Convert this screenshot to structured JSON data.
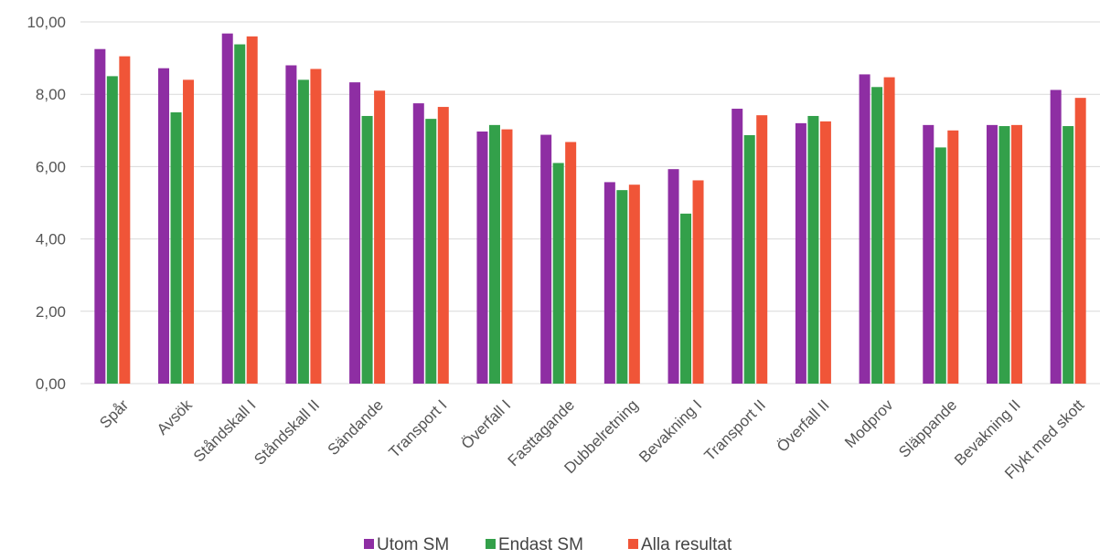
{
  "chart_data": {
    "type": "bar",
    "title": "",
    "xlabel": "",
    "ylabel": "",
    "ylim": [
      0,
      10
    ],
    "yticks": [
      "0,00",
      "2,00",
      "4,00",
      "6,00",
      "8,00",
      "10,00"
    ],
    "grid": true,
    "legend_position": "bottom",
    "categories": [
      "Spår",
      "Avsök",
      "Ståndskall I",
      "Ståndskall II",
      "Sändande",
      "Transport I",
      "Överfall I",
      "Fasttagande",
      "Dubbelretning",
      "Bevakning I",
      "Transport II",
      "Överfall II",
      "Modprov",
      "Släppande",
      "Bevakning II",
      "Flykt med skott"
    ],
    "series": [
      {
        "name": "Utom SM",
        "color": "#8e2ea3",
        "values": [
          9.25,
          8.72,
          9.68,
          8.8,
          8.33,
          7.75,
          6.97,
          6.88,
          5.57,
          5.93,
          7.6,
          7.2,
          8.55,
          7.15,
          7.15,
          8.12
        ]
      },
      {
        "name": "Endast SM",
        "color": "#33a04a",
        "values": [
          8.5,
          7.5,
          9.38,
          8.4,
          7.4,
          7.32,
          7.15,
          6.1,
          5.35,
          4.7,
          6.87,
          7.4,
          8.2,
          6.53,
          7.12,
          7.12
        ]
      },
      {
        "name": "Alla resultat",
        "color": "#f05538",
        "values": [
          9.05,
          8.4,
          9.6,
          8.7,
          8.1,
          7.65,
          7.03,
          6.68,
          5.5,
          5.62,
          7.42,
          7.25,
          8.47,
          7.0,
          7.15,
          7.9
        ]
      }
    ]
  }
}
